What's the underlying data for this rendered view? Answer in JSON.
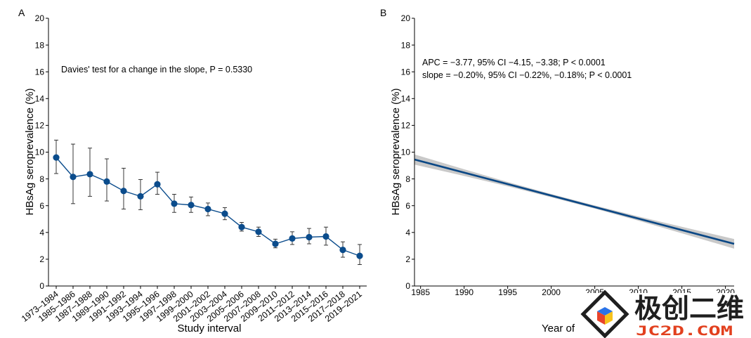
{
  "colors": {
    "series_line": "#0b4c8c",
    "series_point": "#0b4c8c",
    "error_bar": "#222222",
    "regression_line": "#0a4785",
    "ci_band": "#c9c9c9",
    "watermark_text": "#1f1f1f",
    "watermark_subtext": "#e2401e",
    "logo_outline": "#1f1f1f",
    "logo_top": "#2a73e8",
    "logo_left": "#e8432b",
    "logo_right": "#f6c21c"
  },
  "chart_data": [
    {
      "panel_label": "A",
      "type": "line",
      "categories": [
        "1973–1984",
        "1985–1986",
        "1987–1988",
        "1989–1990",
        "1991–1992",
        "1993–1994",
        "1995–1996",
        "1997–1998",
        "1999–2000",
        "2001–2002",
        "2003–2004",
        "2005–2006",
        "2007–2008",
        "2009–2010",
        "2011–2012",
        "2013–2014",
        "2015–2016",
        "2017–2018",
        "2019–2021"
      ],
      "series": [
        {
          "values": [
            9.6,
            8.15,
            8.35,
            7.8,
            7.1,
            6.7,
            7.6,
            6.15,
            6.05,
            5.75,
            5.4,
            4.4,
            4.05,
            3.15,
            3.55,
            3.65,
            3.7,
            2.7,
            2.25
          ],
          "ci_lower": [
            8.4,
            6.15,
            6.7,
            6.35,
            5.75,
            5.7,
            6.85,
            5.5,
            5.5,
            5.25,
            4.95,
            4.1,
            3.7,
            2.85,
            3.1,
            3.15,
            3.05,
            2.15,
            1.6
          ],
          "ci_upper": [
            10.9,
            10.6,
            10.3,
            9.5,
            8.8,
            7.95,
            8.5,
            6.85,
            6.65,
            6.2,
            5.85,
            4.75,
            4.4,
            3.5,
            4.05,
            4.3,
            4.4,
            3.3,
            3.1
          ]
        }
      ],
      "xlabel": "Study interval",
      "ylabel": "HBsAg seroprevalence (%)",
      "ylim": [
        0,
        20
      ],
      "yticks": [
        0,
        2,
        4,
        6,
        8,
        10,
        12,
        14,
        16,
        18,
        20
      ],
      "annotation": "Davies' test for a change in the slope, P = 0.5330",
      "grid": false
    },
    {
      "panel_label": "B",
      "type": "line",
      "series": [
        {
          "x": [
            1984.3,
            2021
          ],
          "y": [
            9.45,
            3.15
          ]
        }
      ],
      "ci_band": {
        "x": [
          1984.3,
          1990,
          1995,
          2000,
          2005,
          2010,
          2015,
          2021
        ],
        "lower": [
          9.07,
          8.22,
          7.45,
          6.63,
          5.78,
          4.88,
          3.94,
          2.79
        ],
        "upper": [
          9.83,
          8.72,
          7.77,
          6.87,
          6.02,
          5.2,
          4.42,
          3.51
        ]
      },
      "xlim": [
        1984.3,
        2021
      ],
      "xticks": [
        1985,
        1990,
        1995,
        2000,
        2005,
        2010,
        2015,
        2020
      ],
      "ylim": [
        0,
        20
      ],
      "yticks": [
        0,
        2,
        4,
        6,
        8,
        10,
        12,
        14,
        16,
        18,
        20
      ],
      "xlabel": "Year of",
      "ylabel": "HBsAg seroprevalence (%)",
      "annotations": [
        "APC = −3.77, 95% CI −4.15, −3.38; P < 0.0001",
        "slope = −0.20%, 95% CI −0.22%, −0.18%; P < 0.0001"
      ],
      "grid": false
    }
  ],
  "watermark": {
    "logo_text": "极创二维",
    "logo_subtext": "JC2D.COM"
  }
}
